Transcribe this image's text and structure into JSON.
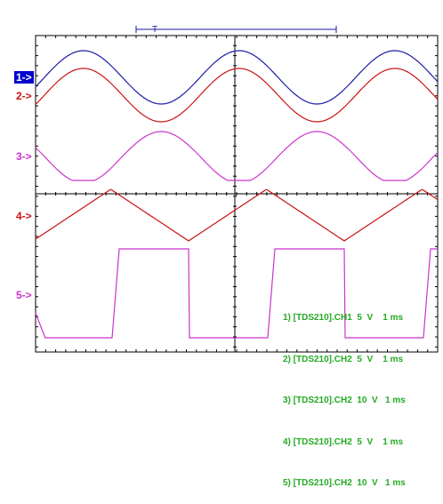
{
  "colors": {
    "background": "#ffffff",
    "grid": "#000000",
    "ch1": "#1a1aa6",
    "ch2": "#cc1111",
    "ch3": "#cc33cc",
    "ch4": "#cc1111",
    "ch5": "#cc33cc",
    "selected_bg": "#0000cc",
    "legend": "#22aa22"
  },
  "timebar": {
    "trigger_marker": "T"
  },
  "channels": [
    {
      "id": "1",
      "label": "1->",
      "selected": true
    },
    {
      "id": "2",
      "label": "2->",
      "selected": false
    },
    {
      "id": "3",
      "label": "3->",
      "selected": false
    },
    {
      "id": "4",
      "label": "4->",
      "selected": false
    },
    {
      "id": "5",
      "label": "5->",
      "selected": false
    }
  ],
  "legend": [
    "1) [TDS210].CH1  5  V    1 ms",
    "2) [TDS210].CH2  5  V    1 ms",
    "3) [TDS210].CH2  10  V   1 ms",
    "4) [TDS210].CH2  5  V    1 ms",
    "5) [TDS210].CH2  10  V   1 ms"
  ],
  "chart_data": {
    "type": "line",
    "x_unit": "ms",
    "series": [
      {
        "name": "1) [TDS210].CH1",
        "shape": "sine",
        "volts_per_div": 5,
        "time_per_div": "1 ms"
      },
      {
        "name": "2) [TDS210].CH2",
        "shape": "sine",
        "volts_per_div": 5,
        "time_per_div": "1 ms"
      },
      {
        "name": "3) [TDS210].CH2",
        "shape": "clipped sine",
        "volts_per_div": 10,
        "time_per_div": "1 ms"
      },
      {
        "name": "4) [TDS210].CH2",
        "shape": "triangle",
        "volts_per_div": 5,
        "time_per_div": "1 ms"
      },
      {
        "name": "5) [TDS210].CH2",
        "shape": "square",
        "volts_per_div": 10,
        "time_per_div": "1 ms"
      }
    ],
    "grid": true
  }
}
